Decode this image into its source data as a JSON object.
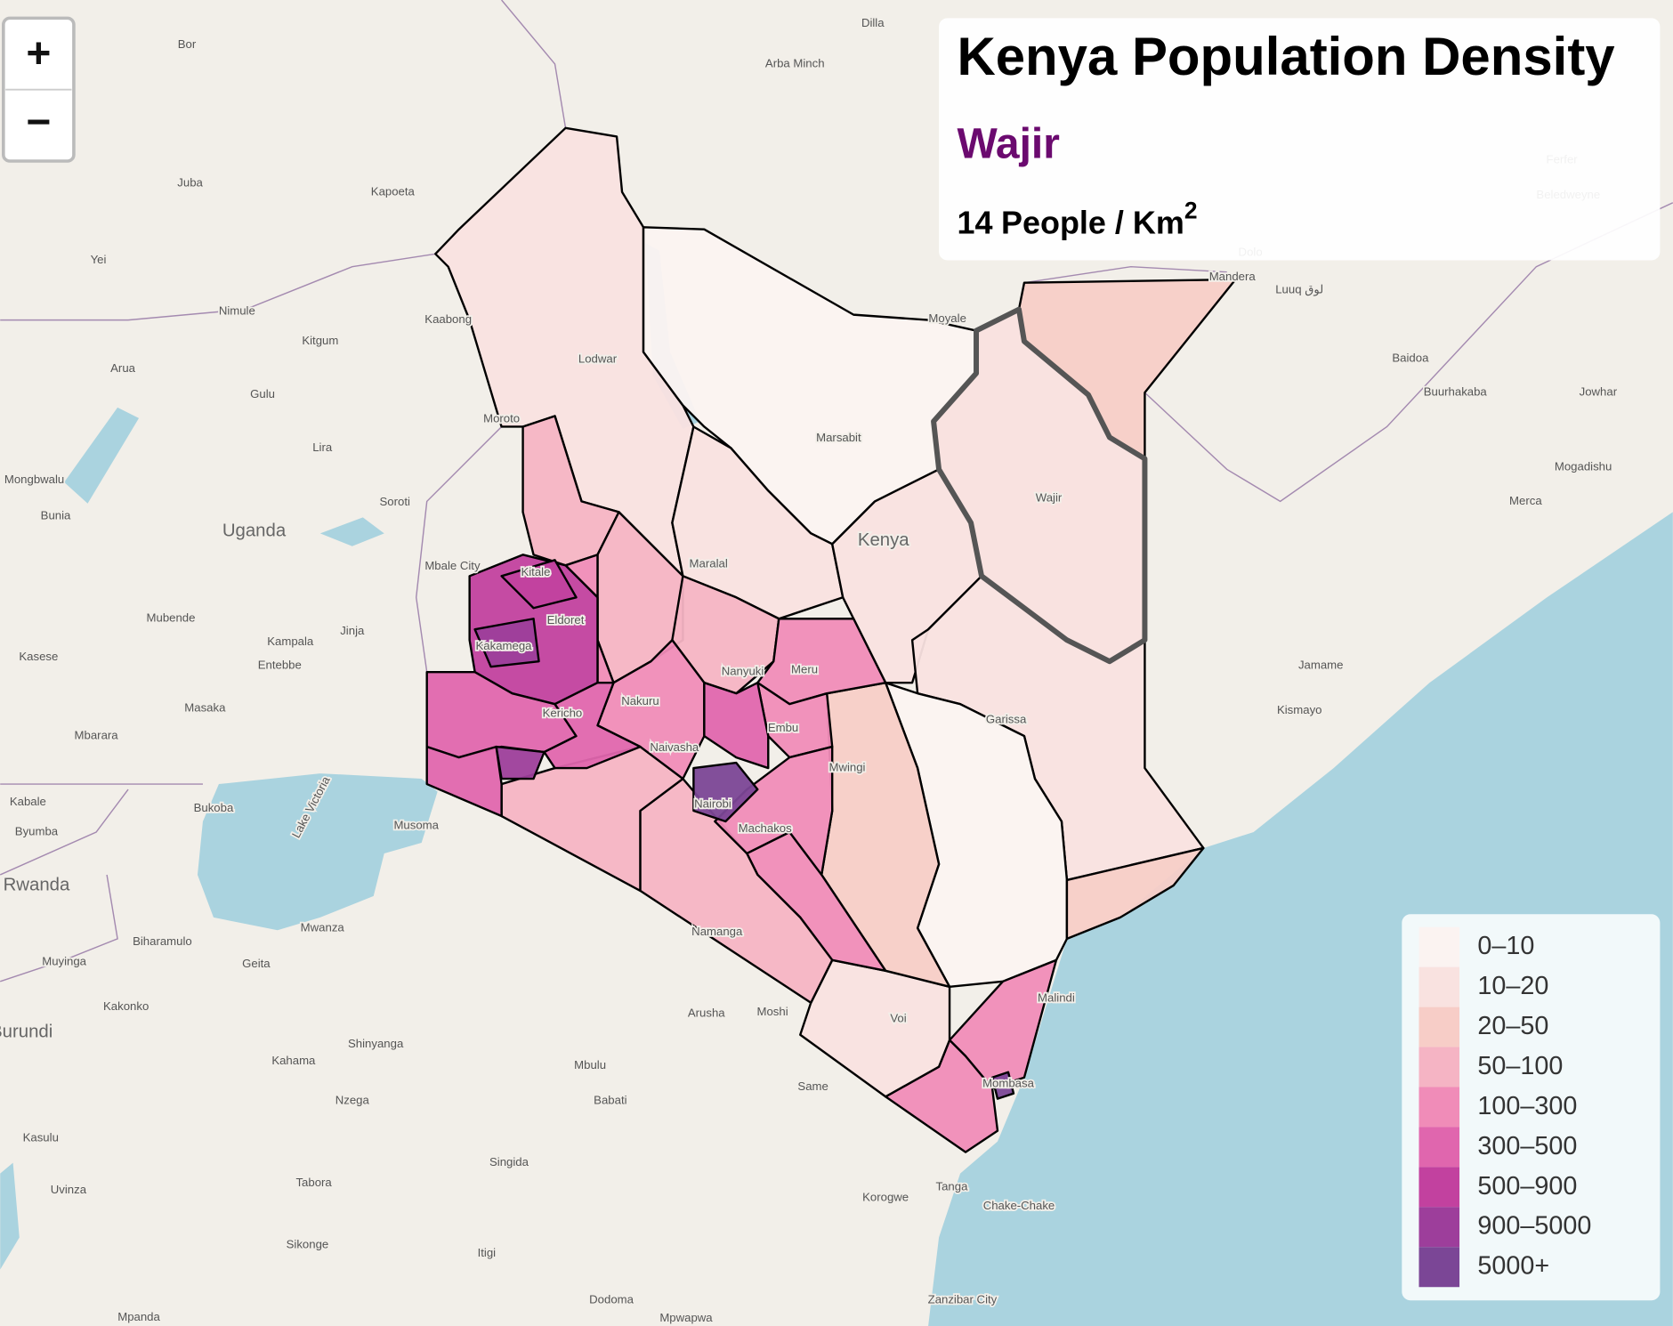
{
  "zoom_controls": {
    "zoom_in": "+",
    "zoom_out": "−"
  },
  "info_box": {
    "title": "Kenya Population Density",
    "region": "Wajir",
    "density": 14,
    "unit": "People / Km",
    "unit_exponent": "2"
  },
  "legend": {
    "items": [
      {
        "label": "0–10",
        "color": "#fbf3f1"
      },
      {
        "label": "10–20",
        "color": "#f9e2e0"
      },
      {
        "label": "20–50",
        "color": "#f7cdc7"
      },
      {
        "label": "50–100",
        "color": "#f5b4c4"
      },
      {
        "label": "100–300",
        "color": "#f08cb8"
      },
      {
        "label": "300–500",
        "color": "#e066ae"
      },
      {
        "label": "500–900",
        "color": "#c2419f"
      },
      {
        "label": "900–5000",
        "color": "#9d3e9b"
      },
      {
        "label": "5000+",
        "color": "#7b4696"
      }
    ]
  },
  "map_labels": [
    "Bor",
    "Juba",
    "Kapoeta",
    "Yei",
    "Dilla",
    "Arba Minch",
    "Nimule",
    "Kaabong",
    "Kitgum",
    "Arua",
    "Gulu",
    "Lodwar",
    "Moyale",
    "Mandera",
    "Luuq لوق",
    "Baidoa",
    "Buurhakaba",
    "Jowhar",
    "Lira",
    "Moroto",
    "Marsabit",
    "Mongbwalu",
    "Mogadishu",
    "Bunia",
    "Soroti",
    "Uganda",
    "Kenya",
    "Wajir",
    "Merca",
    "Mbale City",
    "Maralal",
    "Kitale",
    "Mubende",
    "Kampala",
    "Jinja",
    "Entebbe",
    "Kasese",
    "Eldoret",
    "Kakamega",
    "Meru",
    "Nanyuki",
    "Jamame",
    "Nakuru",
    "Garissa",
    "Masaka",
    "Kismayo",
    "Mbarara",
    "Embu",
    "Kericho",
    "Naivasha",
    "Mwingi",
    "Bukoba",
    "Kabale",
    "Nairobi",
    "Machakos",
    "Musoma",
    "Byumba",
    "Lake Victoria",
    "Rwanda",
    "Mwanza",
    "Namanga",
    "Biharamulo",
    "Muyinga",
    "Geita",
    "Malindi",
    "Kakonko",
    "Arusha",
    "Moshi",
    "Burundi",
    "Voi",
    "Shinyanga",
    "Mbulu",
    "Kahama",
    "Babati",
    "Same",
    "Nzega",
    "Mombasa",
    "Kasulu",
    "Singida",
    "Tabora",
    "Tanga",
    "Uvinza",
    "Korogwe",
    "Chake-Chake",
    "Sikonge",
    "Itigi",
    "Dodoma",
    "Zanzibar City",
    "Mpanda",
    "Mpwapwa",
    "Ferfer",
    "Beledweyne",
    "Dolo"
  ]
}
